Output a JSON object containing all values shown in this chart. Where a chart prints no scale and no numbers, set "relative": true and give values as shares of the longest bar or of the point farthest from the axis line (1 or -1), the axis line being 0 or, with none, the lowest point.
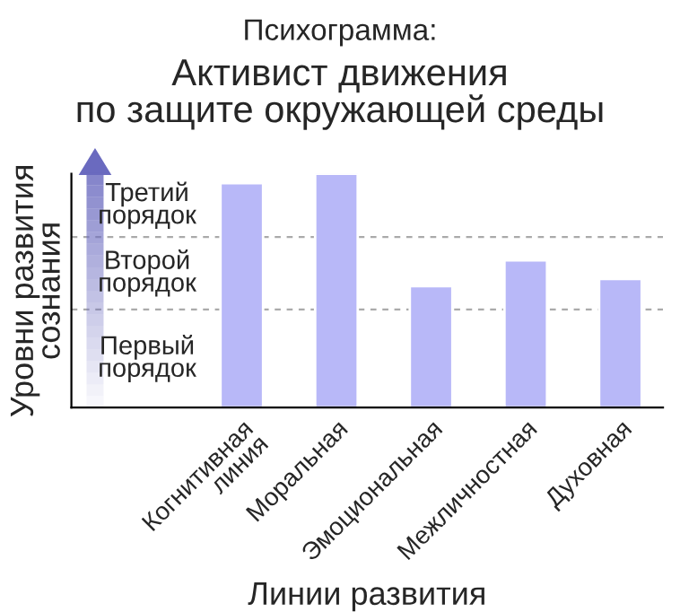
{
  "chart_data": {
    "type": "bar",
    "title": "Психограмма:",
    "subtitle": "Активист движения\nпо защите окружающей среды",
    "xlabel": "Линии развития",
    "ylabel": "Уровни развития\nсознания",
    "categories": [
      "Когнитивная\nлиния",
      "Моральная",
      "Эмоциональная",
      "Межличностная",
      "Духовная"
    ],
    "values": [
      0.96,
      1,
      0.52,
      0.63,
      0.55
    ],
    "color": "#b8b8f8",
    "relative": true,
    "ref_lines": [
      {
        "axis": "y",
        "value": 0.42,
        "color": "#aaaaaa",
        "line_style": "dashed"
      },
      {
        "axis": "y",
        "value": 0.73,
        "color": "#aaaaaa",
        "line_style": "dashed"
      }
    ],
    "annotations": [
      "Первый\nпорядок",
      "Второй\nпорядок",
      "Третий\nпорядок"
    ],
    "grid": false,
    "legend": false
  }
}
